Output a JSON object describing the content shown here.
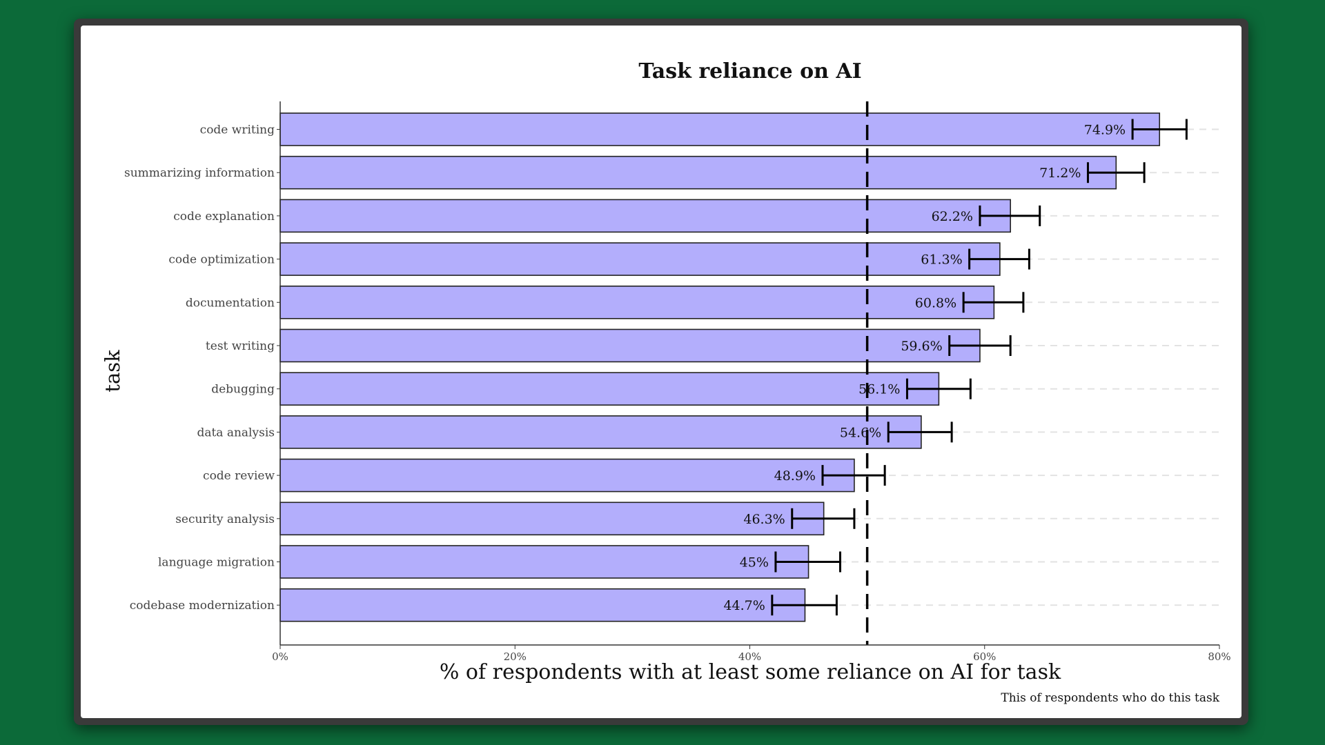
{
  "chart_data": {
    "type": "bar",
    "orientation": "horizontal",
    "title": "Task reliance on AI",
    "xlabel": "% of respondents with at least some reliance on AI for task",
    "ylabel": "task",
    "caption": "This of respondents who do this task",
    "xlim": [
      0,
      80
    ],
    "xticks": [
      0,
      20,
      40,
      60,
      80
    ],
    "xtick_labels": [
      "0%",
      "20%",
      "40%",
      "60%",
      "80%"
    ],
    "reference_line": 50,
    "bar_color": "#b3aefc",
    "categories": [
      "code writing",
      "summarizing information",
      "code explanation",
      "code optimization",
      "documentation",
      "test writing",
      "debugging",
      "data analysis",
      "code review",
      "security analysis",
      "language migration",
      "codebase modernization"
    ],
    "values": [
      74.9,
      71.2,
      62.2,
      61.3,
      60.8,
      59.6,
      56.1,
      54.6,
      48.9,
      46.3,
      45,
      44.7
    ],
    "value_labels": [
      "74.9%",
      "71.2%",
      "62.2%",
      "61.3%",
      "60.8%",
      "59.6%",
      "56.1%",
      "54.6%",
      "48.9%",
      "46.3%",
      "45%",
      "44.7%"
    ],
    "error_low": [
      72.6,
      68.8,
      59.6,
      58.7,
      58.2,
      57.0,
      53.4,
      51.8,
      46.2,
      43.6,
      42.2,
      41.9
    ],
    "error_high": [
      77.2,
      73.6,
      64.7,
      63.8,
      63.3,
      62.2,
      58.8,
      57.2,
      51.5,
      48.9,
      47.7,
      47.4
    ]
  }
}
